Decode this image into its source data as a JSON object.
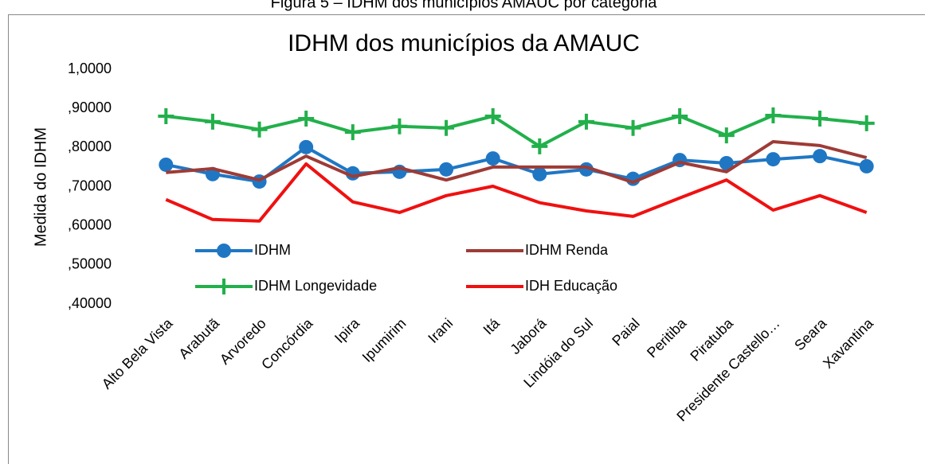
{
  "caption": "Figura 5 – IDHM dos municípios AMAUC por categoria",
  "chart_data": {
    "type": "line",
    "title": "IDHM dos municípios da AMAUC",
    "y_label": "Medida do IDHM",
    "categories": [
      "Alto Bela Vista",
      "Arabutã",
      "Arvoredo",
      "Concórdia",
      "Ipira",
      "Ipumirim",
      "Irani",
      "Itá",
      "Jaborá",
      "Lindóia do Sul",
      "Paial",
      "Peritiba",
      "Piratuba",
      "Presidente Castello…",
      "Seara",
      "Xavantina"
    ],
    "series": [
      {
        "name": "IDHM",
        "color": "#1f77c4",
        "marker": "circle",
        "values": [
          0.756,
          0.732,
          0.713,
          0.801,
          0.734,
          0.738,
          0.744,
          0.772,
          0.732,
          0.744,
          0.72,
          0.768,
          0.76,
          0.77,
          0.778,
          0.752
        ]
      },
      {
        "name": "IDHM Renda",
        "color": "#9e3b36",
        "marker": "none",
        "values": [
          0.736,
          0.746,
          0.717,
          0.778,
          0.726,
          0.748,
          0.717,
          0.75,
          0.75,
          0.75,
          0.711,
          0.762,
          0.738,
          0.815,
          0.805,
          0.774
        ]
      },
      {
        "name": "IDHM Longevidade",
        "color": "#22b04b",
        "marker": "plus",
        "values": [
          0.88,
          0.866,
          0.846,
          0.874,
          0.839,
          0.854,
          0.85,
          0.88,
          0.803,
          0.866,
          0.85,
          0.88,
          0.831,
          0.882,
          0.874,
          0.862
        ]
      },
      {
        "name": "IDH Educação",
        "color": "#f01010",
        "marker": "none",
        "values": [
          0.667,
          0.616,
          0.612,
          0.758,
          0.661,
          0.634,
          0.677,
          0.701,
          0.659,
          0.638,
          0.624,
          0.671,
          0.717,
          0.64,
          0.677,
          0.634
        ]
      }
    ],
    "ylim": [
      0.4,
      1.0
    ],
    "yticks": [
      {
        "value": 0.4,
        "label": ",40000"
      },
      {
        "value": 0.5,
        "label": ",50000"
      },
      {
        "value": 0.6,
        "label": ",60000"
      },
      {
        "value": 0.7,
        "label": ",70000"
      },
      {
        "value": 0.8,
        "label": ",80000"
      },
      {
        "value": 0.9,
        "label": ",90000"
      },
      {
        "value": 1.0,
        "label": "1,0000"
      }
    ],
    "grid": false,
    "legend": "inside"
  }
}
